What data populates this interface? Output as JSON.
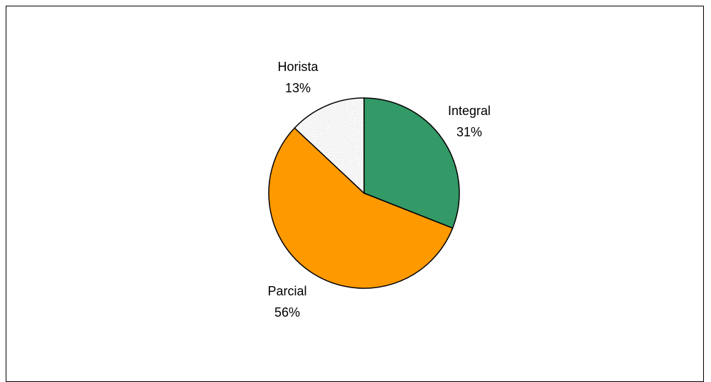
{
  "chart_data": {
    "type": "pie",
    "title": "",
    "slices": [
      {
        "label": "Integral",
        "value": 31,
        "value_label": "31%",
        "color": "#339966"
      },
      {
        "label": "Parcial",
        "value": 56,
        "value_label": "56%",
        "color": "#FF9900"
      },
      {
        "label": "Horista",
        "value": 13,
        "value_label": "13%",
        "color": "#C0C0C0",
        "pattern": "granite"
      }
    ],
    "start_angle": "12 o'clock",
    "direction": "clockwise",
    "legend": "none"
  }
}
